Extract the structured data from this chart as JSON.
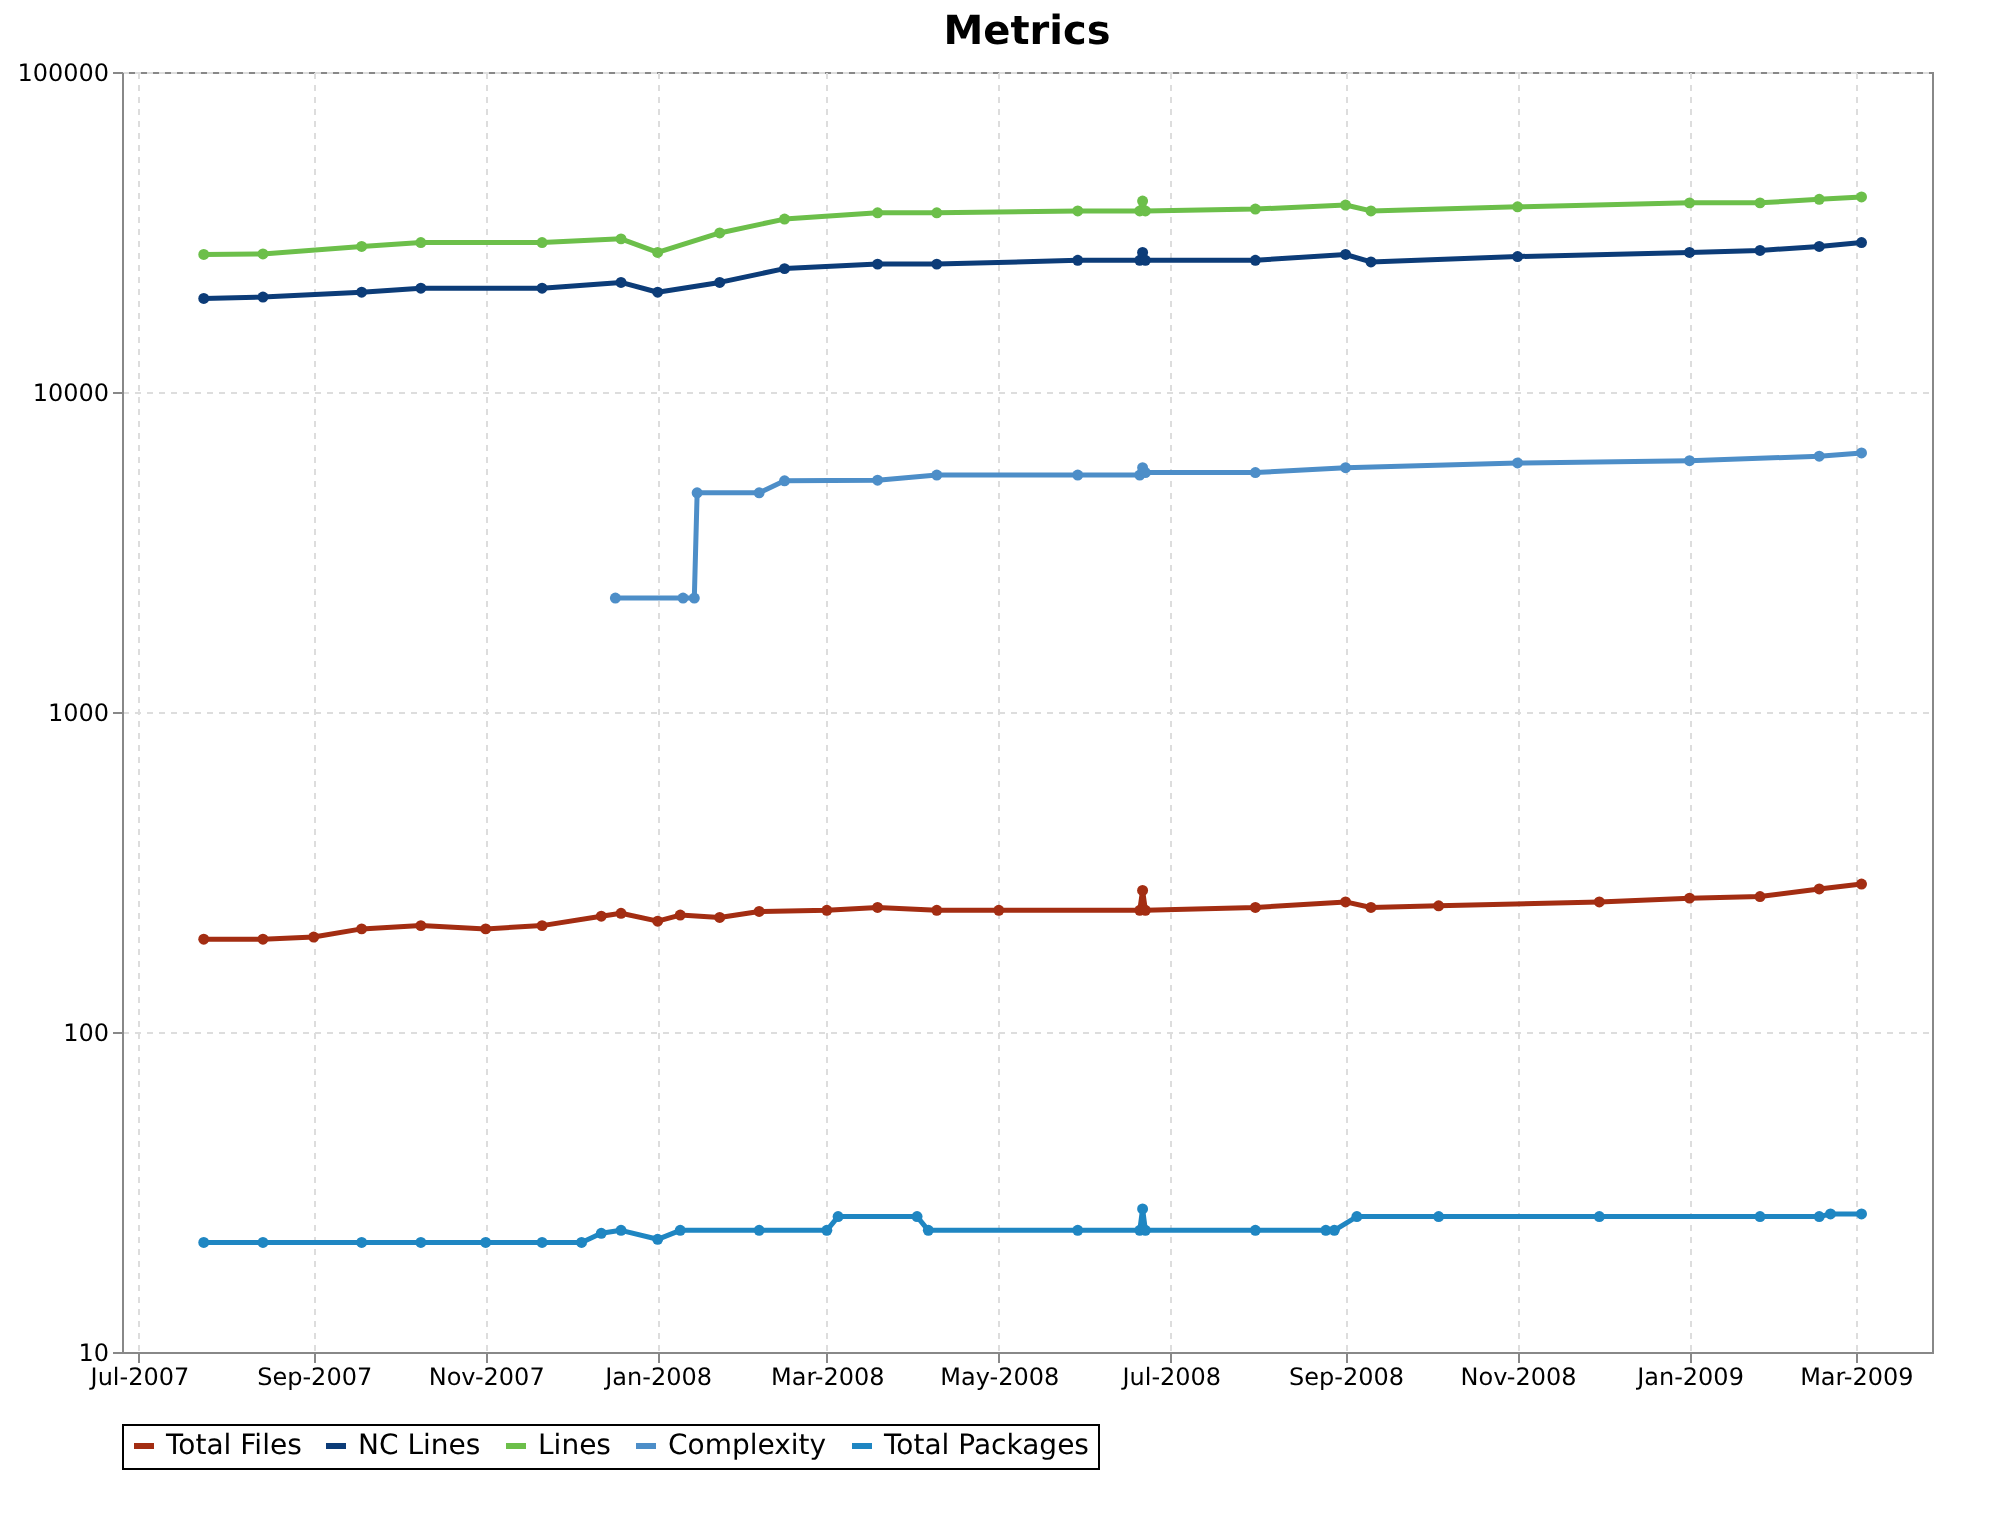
{
  "chart_data": {
    "type": "line",
    "title": "Metrics",
    "log": "y",
    "grid": true,
    "legend": "bottom",
    "marker": "circle",
    "line_style": "solid",
    "xlim": [
      "2007-06-25",
      "2009-03-28"
    ],
    "xticks": [
      {
        "value": "2007-07-01",
        "label": "Jul-2007"
      },
      {
        "value": "2007-09-01",
        "label": "Sep-2007"
      },
      {
        "value": "2007-11-01",
        "label": "Nov-2007"
      },
      {
        "value": "2008-01-01",
        "label": "Jan-2008"
      },
      {
        "value": "2008-03-01",
        "label": "Mar-2008"
      },
      {
        "value": "2008-05-01",
        "label": "May-2008"
      },
      {
        "value": "2008-07-01",
        "label": "Jul-2008"
      },
      {
        "value": "2008-09-01",
        "label": "Sep-2008"
      },
      {
        "value": "2008-11-01",
        "label": "Nov-2008"
      },
      {
        "value": "2009-01-01",
        "label": "Jan-2009"
      },
      {
        "value": "2009-03-01",
        "label": "Mar-2009"
      }
    ],
    "ylim": [
      10,
      100000
    ],
    "yticks": [
      10,
      100,
      1000,
      10000,
      100000
    ],
    "series": [
      {
        "name": "Total Files",
        "color": "#a32d12",
        "x": [
          "2007-07-24",
          "2007-08-14",
          "2007-09-01",
          "2007-09-18",
          "2007-10-09",
          "2007-11-01",
          "2007-11-21",
          "2007-12-12",
          "2007-12-19",
          "2008-01-01",
          "2008-01-09",
          "2008-01-23",
          "2008-02-06",
          "2008-03-01",
          "2008-03-19",
          "2008-04-09",
          "2008-05-01",
          "2008-06-20",
          "2008-06-21",
          "2008-06-22",
          "2008-07-31",
          "2008-09-01",
          "2008-09-10",
          "2008-10-04",
          "2008-11-30",
          "2009-01-01",
          "2009-01-26",
          "2009-02-16",
          "2009-03-03"
        ],
        "values": [
          195,
          195,
          198,
          210,
          215,
          210,
          215,
          230,
          235,
          222,
          232,
          228,
          238,
          240,
          245,
          240,
          240,
          240,
          277,
          240,
          245,
          255,
          245,
          248,
          255,
          262,
          265,
          280,
          290
        ]
      },
      {
        "name": "NC Lines",
        "color": "#0c3c78",
        "x": [
          "2007-07-24",
          "2007-08-14",
          "2007-09-18",
          "2007-10-09",
          "2007-11-21",
          "2007-12-19",
          "2008-01-01",
          "2008-01-23",
          "2008-02-15",
          "2008-03-19",
          "2008-04-09",
          "2008-05-29",
          "2008-06-20",
          "2008-06-21",
          "2008-06-22",
          "2008-07-31",
          "2008-09-01",
          "2008-09-10",
          "2008-11-01",
          "2009-01-01",
          "2009-01-26",
          "2009-02-16",
          "2009-03-03"
        ],
        "values": [
          19600,
          19800,
          20500,
          21100,
          21100,
          22000,
          20500,
          22000,
          24300,
          25100,
          25100,
          25800,
          25800,
          27300,
          25800,
          25800,
          26900,
          25500,
          26500,
          27300,
          27700,
          28500,
          29300
        ]
      },
      {
        "name": "Lines",
        "color": "#6cbf4a",
        "x": [
          "2007-07-24",
          "2007-08-14",
          "2007-09-18",
          "2007-10-09",
          "2007-11-21",
          "2007-12-19",
          "2008-01-01",
          "2008-01-23",
          "2008-02-15",
          "2008-03-19",
          "2008-04-09",
          "2008-05-29",
          "2008-06-20",
          "2008-06-21",
          "2008-06-22",
          "2008-07-31",
          "2008-09-01",
          "2008-09-10",
          "2008-11-01",
          "2009-01-01",
          "2009-01-26",
          "2009-02-16",
          "2009-03-03"
        ],
        "values": [
          26900,
          27000,
          28500,
          29300,
          29300,
          30100,
          27300,
          31400,
          34700,
          36300,
          36300,
          36800,
          36800,
          39500,
          36800,
          37300,
          38400,
          36800,
          37900,
          39000,
          39000,
          40000,
          40700
        ]
      },
      {
        "name": "Complexity",
        "color": "#4d8ec8",
        "x": [
          "2007-12-17",
          "2008-01-10",
          "2008-01-14",
          "2008-01-15",
          "2008-02-06",
          "2008-02-15",
          "2008-03-19",
          "2008-04-09",
          "2008-05-29",
          "2008-06-20",
          "2008-06-21",
          "2008-06-22",
          "2008-07-31",
          "2008-09-01",
          "2008-11-01",
          "2009-01-01",
          "2009-02-16",
          "2009-03-03"
        ],
        "values": [
          2270,
          2270,
          2270,
          4840,
          4840,
          5280,
          5300,
          5500,
          5500,
          5500,
          5800,
          5600,
          5600,
          5800,
          6000,
          6100,
          6300,
          6450
        ]
      },
      {
        "name": "Total Packages",
        "color": "#1f86c2",
        "x": [
          "2007-07-24",
          "2007-08-14",
          "2007-09-18",
          "2007-10-09",
          "2007-11-01",
          "2007-11-21",
          "2007-12-05",
          "2007-12-12",
          "2007-12-19",
          "2008-01-01",
          "2008-01-09",
          "2008-02-06",
          "2008-03-01",
          "2008-03-05",
          "2008-04-02",
          "2008-04-06",
          "2008-05-29",
          "2008-06-20",
          "2008-06-21",
          "2008-06-22",
          "2008-07-31",
          "2008-08-25",
          "2008-08-28",
          "2008-09-05",
          "2008-10-04",
          "2008-11-30",
          "2009-01-26",
          "2009-02-16",
          "2009-02-20",
          "2009-03-03"
        ],
        "values": [
          22,
          22,
          22,
          22,
          22,
          22,
          22,
          23.5,
          24,
          22.5,
          24,
          24,
          24,
          26.5,
          26.5,
          24,
          24,
          24,
          28,
          24,
          24,
          24,
          24,
          26.5,
          26.5,
          26.5,
          26.5,
          26.5,
          27,
          27
        ]
      }
    ]
  }
}
